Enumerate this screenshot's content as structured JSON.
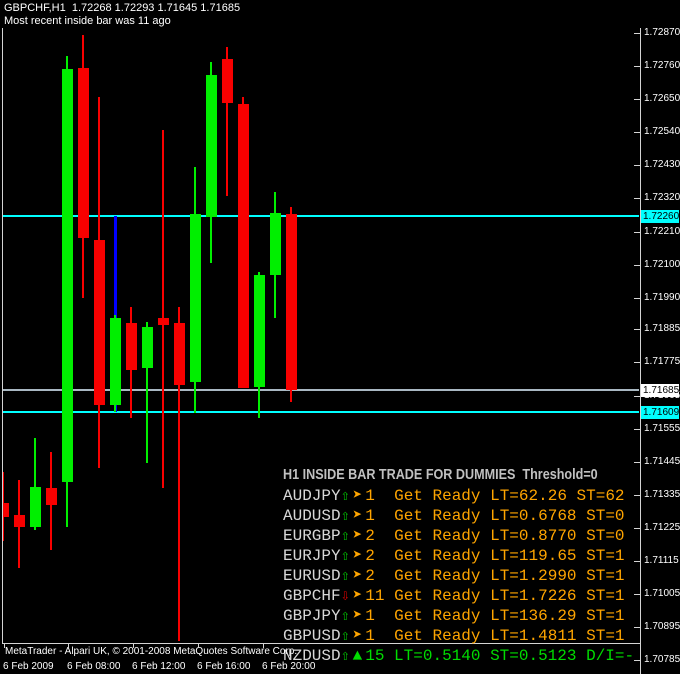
{
  "window_title": {
    "line1": "GBPCHF,H1  1.72268 1.72293 1.71645 1.71685",
    "line2": "Most recent inside bar was 11 ago"
  },
  "chart_data": {
    "type": "candlestick",
    "symbol": "GBPCHF",
    "timeframe": "H1",
    "last_bar_ohlc": {
      "open": "1.72268",
      "high": "1.72293",
      "low": "1.71645",
      "close": "1.71685"
    },
    "ylim": [
      1.70785,
      1.7287
    ],
    "y_axis_labels": [
      "1.72870",
      "1.72760",
      "1.72650",
      "1.72540",
      "1.72430",
      "1.72320",
      "1.72210",
      "1.72100",
      "1.71990",
      "1.71885",
      "1.71775",
      "1.71665",
      "1.71555",
      "1.71445",
      "1.71335",
      "1.71225",
      "1.71115",
      "1.71005",
      "1.70895",
      "1.70785"
    ],
    "y_axis_boxes": [
      {
        "label": "1.72260",
        "price": 1.7226,
        "bg": "#00ffff",
        "fg": "#000000"
      },
      {
        "label": "1.71685",
        "price": 1.71685,
        "bg": "#ffffff",
        "fg": "#000000"
      },
      {
        "label": "1.71609",
        "price": 1.71609,
        "bg": "#00ffff",
        "fg": "#000000"
      }
    ],
    "x_axis_labels": [
      "6 Feb 2009",
      "6 Feb 08:00",
      "6 Feb 12:00",
      "6 Feb 16:00",
      "6 Feb 20:00"
    ],
    "hlines": [
      {
        "price": 1.7226,
        "color": "#00ffff",
        "name": "upper-level-line"
      },
      {
        "price": 1.71685,
        "color": "#a9b8c2",
        "name": "bid-price-line"
      },
      {
        "price": 1.71609,
        "color": "#00ffff",
        "name": "lower-level-line"
      }
    ],
    "inside_bar_marker": {
      "bar_index": 7,
      "top_price": 1.7226,
      "bottom_price": 1.71609,
      "color": "#0000ff"
    },
    "candles": [
      {
        "time": "04:00",
        "o": 1.71307,
        "h": 1.7141,
        "l": 1.71183,
        "c": 1.7126
      },
      {
        "time": "05:00",
        "o": 1.71267,
        "h": 1.71383,
        "l": 1.71093,
        "c": 1.71227
      },
      {
        "time": "06:00",
        "o": 1.71227,
        "h": 1.71523,
        "l": 1.71217,
        "c": 1.7136
      },
      {
        "time": "07:00",
        "o": 1.71357,
        "h": 1.71477,
        "l": 1.7115,
        "c": 1.713
      },
      {
        "time": "08:00",
        "o": 1.71377,
        "h": 1.72793,
        "l": 1.71227,
        "c": 1.7275
      },
      {
        "time": "09:00",
        "o": 1.72753,
        "h": 1.72863,
        "l": 1.7199,
        "c": 1.7219
      },
      {
        "time": "10:00",
        "o": 1.72183,
        "h": 1.72657,
        "l": 1.71423,
        "c": 1.71633
      },
      {
        "time": "11:00",
        "o": 1.71633,
        "h": 1.71933,
        "l": 1.7161,
        "c": 1.71923
      },
      {
        "time": "12:00",
        "o": 1.71907,
        "h": 1.7196,
        "l": 1.7159,
        "c": 1.7175
      },
      {
        "time": "13:00",
        "o": 1.71757,
        "h": 1.7191,
        "l": 1.7144,
        "c": 1.71893
      },
      {
        "time": "14:00",
        "o": 1.71923,
        "h": 1.72547,
        "l": 1.71357,
        "c": 1.719
      },
      {
        "time": "15:00",
        "o": 1.71907,
        "h": 1.7196,
        "l": 1.7085,
        "c": 1.717
      },
      {
        "time": "16:00",
        "o": 1.7171,
        "h": 1.72423,
        "l": 1.71607,
        "c": 1.72267
      },
      {
        "time": "17:00",
        "o": 1.72257,
        "h": 1.72773,
        "l": 1.72107,
        "c": 1.7273
      },
      {
        "time": "18:00",
        "o": 1.72783,
        "h": 1.72823,
        "l": 1.72327,
        "c": 1.72637
      },
      {
        "time": "19:00",
        "o": 1.72633,
        "h": 1.72657,
        "l": 1.7169,
        "c": 1.7169
      },
      {
        "time": "20:00",
        "o": 1.71693,
        "h": 1.72077,
        "l": 1.7159,
        "c": 1.72067
      },
      {
        "time": "21:00",
        "o": 1.72067,
        "h": 1.7234,
        "l": 1.71923,
        "c": 1.72273
      },
      {
        "time": "22:00",
        "o": 1.72268,
        "h": 1.72293,
        "l": 1.71645,
        "c": 1.71685
      }
    ],
    "up_color": "#00ef00",
    "down_color": "#f80000"
  },
  "panel": {
    "title": "H1 INSIDE BAR TRADE FOR DUMMIES  Threshold=0",
    "rows": [
      {
        "pair": "AUDJPY",
        "dir": "up",
        "marker": "➤",
        "count": "1",
        "info": "Get Ready LT=62.26 ST=62",
        "tone": "orange"
      },
      {
        "pair": "AUDUSD",
        "dir": "up",
        "marker": "➤",
        "count": "1",
        "info": "Get Ready LT=0.6768 ST=0",
        "tone": "orange"
      },
      {
        "pair": "EURGBP",
        "dir": "up",
        "marker": "➤",
        "count": "2",
        "info": "Get Ready LT=0.8770 ST=0",
        "tone": "orange"
      },
      {
        "pair": "EURJPY",
        "dir": "up",
        "marker": "➤",
        "count": "2",
        "info": "Get Ready LT=119.65 ST=1",
        "tone": "orange"
      },
      {
        "pair": "EURUSD",
        "dir": "up",
        "marker": "➤",
        "count": "2",
        "info": "Get Ready LT=1.2990 ST=1",
        "tone": "orange"
      },
      {
        "pair": "GBPCHF",
        "dir": "down",
        "marker": "➤",
        "count": "11",
        "info": "Get Ready LT=1.7226 ST=1",
        "tone": "orange"
      },
      {
        "pair": "GBPJPY",
        "dir": "up",
        "marker": "➤",
        "count": "1",
        "info": "Get Ready LT=136.29 ST=1",
        "tone": "orange"
      },
      {
        "pair": "GBPUSD",
        "dir": "up",
        "marker": "➤",
        "count": "1",
        "info": "Get Ready LT=1.4811 ST=1",
        "tone": "orange"
      },
      {
        "pair": "NZDUSD",
        "dir": "up",
        "marker": "▲",
        "count": "15",
        "info": "LT=0.5140 ST=0.5123 D/I=-",
        "tone": "green"
      }
    ],
    "colors": {
      "title": "#c0c0c0",
      "pair": "#d8d8d8",
      "orange": "#ffa500",
      "green": "#00dc00",
      "arrow_up": "#00cd00",
      "arrow_down": "#e80000"
    }
  },
  "footer": {
    "copyright": "MetaTrader - Alpari UK, © 2001-2008 MetaQuotes Software Corp."
  }
}
